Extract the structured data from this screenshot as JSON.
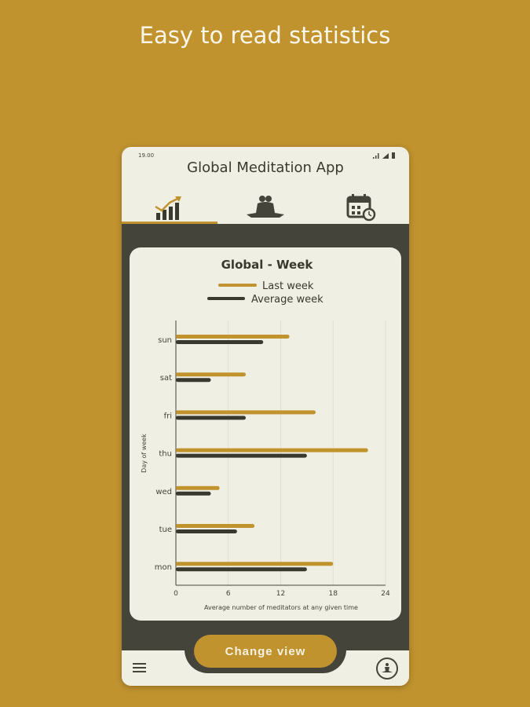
{
  "headline": "Easy to read statistics",
  "status_bar": {
    "time": "19.00"
  },
  "app": {
    "title": "Global Meditation App"
  },
  "tabs": [
    {
      "icon": "chart-growth-icon",
      "active": true
    },
    {
      "icon": "meditating-couple-icon",
      "active": false
    },
    {
      "icon": "calendar-clock-icon",
      "active": false
    }
  ],
  "colors": {
    "background": "#c0932f",
    "dark": "#45443a",
    "light": "#f0efe4",
    "last_week": "#c0932f",
    "average_week": "#3a392f"
  },
  "bottom": {
    "change_view": "Change view",
    "menu_icon": "hamburger-menu-icon",
    "meditation_icon": "meditation-icon"
  },
  "chart_data": {
    "type": "bar",
    "orientation": "horizontal",
    "title": "Global - Week",
    "xlabel": "Average number of meditators at any given time",
    "ylabel": "Day of week",
    "categories": [
      "sun",
      "sat",
      "fri",
      "thu",
      "wed",
      "tue",
      "mon"
    ],
    "series": [
      {
        "name": "Last week",
        "values": [
          13,
          8,
          16,
          22,
          5,
          9,
          18
        ]
      },
      {
        "name": "Average week",
        "values": [
          10,
          4,
          8,
          15,
          4,
          7,
          15
        ]
      }
    ],
    "xlim": [
      0,
      24
    ],
    "xticks": [
      "0",
      "6",
      "12",
      "18",
      "24"
    ],
    "grid": "vertical",
    "legend": "top"
  }
}
